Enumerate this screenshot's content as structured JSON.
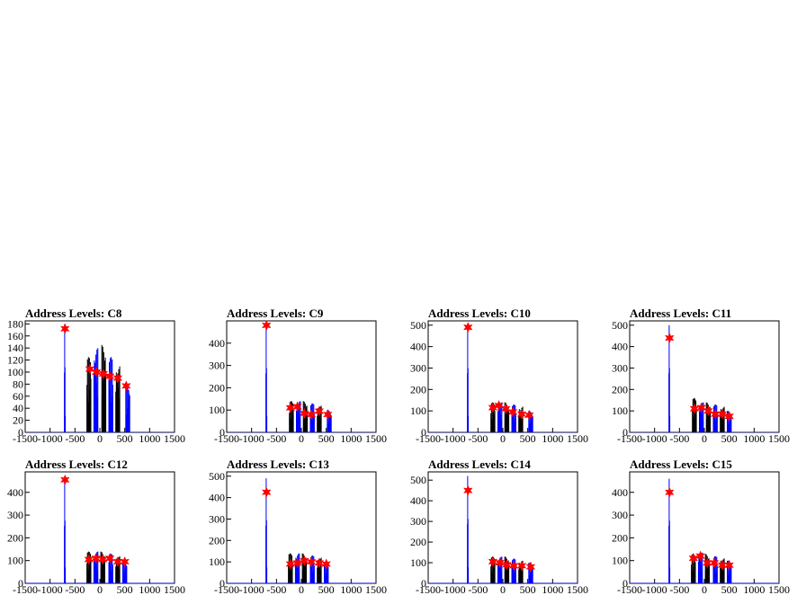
{
  "chart_data": [
    {
      "type": "line",
      "title": "Address Levels: C8",
      "xlim": [
        -1500,
        1500
      ],
      "ylim": [
        0,
        185
      ],
      "xticks": [
        -1500,
        -1000,
        -500,
        0,
        500,
        1000,
        1500
      ],
      "xtick_labels": [
        "-1500",
        "-1000",
        "-500",
        "0",
        "500",
        "1000",
        "1500"
      ],
      "yticks": [
        0,
        20,
        40,
        60,
        80,
        100,
        120,
        140,
        160,
        180
      ],
      "ytick_labels": [
        "0",
        "20",
        "40",
        "60",
        "80",
        "100",
        "120",
        "140",
        "160",
        "180"
      ],
      "peaks": [
        [
          -700,
          180
        ],
        [
          -220,
          125
        ],
        [
          -80,
          140
        ],
        [
          80,
          145
        ],
        [
          220,
          125
        ],
        [
          360,
          110
        ],
        [
          560,
          80
        ]
      ],
      "markers": [
        [
          -700,
          172
        ],
        [
          -200,
          105
        ],
        [
          -70,
          100
        ],
        [
          70,
          97
        ],
        [
          200,
          93
        ],
        [
          360,
          90
        ],
        [
          530,
          77
        ]
      ]
    },
    {
      "type": "line",
      "title": "Address Levels: C9",
      "xlim": [
        -1500,
        1500
      ],
      "ylim": [
        0,
        500
      ],
      "xticks": [
        -1500,
        -1000,
        -500,
        0,
        500,
        1000,
        1500
      ],
      "xtick_labels": [
        "-1500",
        "-1000",
        "-500",
        "0",
        "500",
        "1000",
        "1500"
      ],
      "yticks": [
        0,
        100,
        200,
        300,
        400
      ],
      "ytick_labels": [
        "0",
        "100",
        "200",
        "300",
        "400"
      ],
      "peaks": [
        [
          -700,
          480
        ],
        [
          -200,
          140
        ],
        [
          -60,
          140
        ],
        [
          80,
          140
        ],
        [
          220,
          130
        ],
        [
          360,
          120
        ],
        [
          560,
          100
        ]
      ],
      "markers": [
        [
          -700,
          480
        ],
        [
          -220,
          110
        ],
        [
          -80,
          115
        ],
        [
          60,
          85
        ],
        [
          200,
          80
        ],
        [
          360,
          95
        ],
        [
          530,
          80
        ]
      ]
    },
    {
      "type": "line",
      "title": "Address Levels: C10",
      "xlim": [
        -1500,
        1500
      ],
      "ylim": [
        0,
        520
      ],
      "xticks": [
        -1500,
        -1000,
        -500,
        0,
        500,
        1000,
        1500
      ],
      "xtick_labels": [
        "-1500",
        "-1000",
        "-500",
        "0",
        "500",
        "1000",
        "1500"
      ],
      "yticks": [
        0,
        100,
        200,
        300,
        400,
        500
      ],
      "ytick_labels": [
        "0",
        "100",
        "200",
        "300",
        "400",
        "500"
      ],
      "peaks": [
        [
          -700,
          500
        ],
        [
          -200,
          140
        ],
        [
          -60,
          140
        ],
        [
          80,
          140
        ],
        [
          220,
          130
        ],
        [
          360,
          120
        ],
        [
          560,
          100
        ]
      ],
      "markers": [
        [
          -700,
          490
        ],
        [
          -200,
          115
        ],
        [
          -80,
          125
        ],
        [
          60,
          110
        ],
        [
          200,
          95
        ],
        [
          380,
          85
        ],
        [
          530,
          80
        ]
      ]
    },
    {
      "type": "line",
      "title": "Address Levels: C11",
      "xlim": [
        -1500,
        1500
      ],
      "ylim": [
        0,
        520
      ],
      "xticks": [
        -1500,
        -1000,
        -500,
        0,
        500,
        1000,
        1500
      ],
      "xtick_labels": [
        "-1500",
        "-1000",
        "-500",
        "0",
        "500",
        "1000",
        "1500"
      ],
      "yticks": [
        0,
        100,
        200,
        300,
        400,
        500
      ],
      "ytick_labels": [
        "0",
        "100",
        "200",
        "300",
        "400",
        "500"
      ],
      "peaks": [
        [
          -700,
          500
        ],
        [
          -200,
          160
        ],
        [
          -60,
          140
        ],
        [
          80,
          140
        ],
        [
          220,
          130
        ],
        [
          360,
          120
        ],
        [
          500,
          100
        ]
      ],
      "markers": [
        [
          -700,
          440
        ],
        [
          -200,
          110
        ],
        [
          -60,
          115
        ],
        [
          80,
          100
        ],
        [
          220,
          85
        ],
        [
          360,
          85
        ],
        [
          500,
          75
        ]
      ]
    },
    {
      "type": "line",
      "title": "Address Levels: C12",
      "xlim": [
        -1500,
        1500
      ],
      "ylim": [
        0,
        490
      ],
      "xticks": [
        -1500,
        -1000,
        -500,
        0,
        500,
        1000,
        1500
      ],
      "xtick_labels": [
        "-1500",
        "-1000",
        "-500",
        "0",
        "500",
        "1000",
        "1500"
      ],
      "yticks": [
        0,
        100,
        200,
        300,
        400
      ],
      "ytick_labels": [
        "0",
        "100",
        "200",
        "300",
        "400"
      ],
      "peaks": [
        [
          -700,
          460
        ],
        [
          -220,
          140
        ],
        [
          -80,
          140
        ],
        [
          60,
          140
        ],
        [
          220,
          130
        ],
        [
          360,
          120
        ],
        [
          500,
          100
        ]
      ],
      "markers": [
        [
          -700,
          455
        ],
        [
          -220,
          105
        ],
        [
          -80,
          110
        ],
        [
          60,
          105
        ],
        [
          200,
          110
        ],
        [
          360,
          95
        ],
        [
          500,
          95
        ]
      ]
    },
    {
      "type": "line",
      "title": "Address Levels: C13",
      "xlim": [
        -1500,
        1500
      ],
      "ylim": [
        0,
        520
      ],
      "xticks": [
        -1500,
        -1000,
        -500,
        0,
        500,
        1000,
        1500
      ],
      "xtick_labels": [
        "-1500",
        "-1000",
        "-500",
        "0",
        "500",
        "1000",
        "1500"
      ],
      "yticks": [
        0,
        100,
        200,
        300,
        400,
        500
      ],
      "ytick_labels": [
        "0",
        "100",
        "200",
        "300",
        "400",
        "500"
      ],
      "peaks": [
        [
          -700,
          490
        ],
        [
          -220,
          140
        ],
        [
          -80,
          140
        ],
        [
          60,
          140
        ],
        [
          220,
          130
        ],
        [
          360,
          120
        ],
        [
          500,
          100
        ]
      ],
      "markers": [
        [
          -700,
          425
        ],
        [
          -220,
          90
        ],
        [
          -80,
          95
        ],
        [
          60,
          105
        ],
        [
          200,
          100
        ],
        [
          360,
          95
        ],
        [
          500,
          90
        ]
      ]
    },
    {
      "type": "line",
      "title": "Address Levels: C14",
      "xlim": [
        -1500,
        1500
      ],
      "ylim": [
        0,
        540
      ],
      "xticks": [
        -1500,
        -1000,
        -500,
        0,
        500,
        1000,
        1500
      ],
      "xtick_labels": [
        "-1500",
        "-1000",
        "-500",
        "0",
        "500",
        "1000",
        "1500"
      ],
      "yticks": [
        0,
        100,
        200,
        300,
        400,
        500
      ],
      "ytick_labels": [
        "0",
        "100",
        "200",
        "300",
        "400",
        "500"
      ],
      "peaks": [
        [
          -700,
          520
        ],
        [
          -200,
          130
        ],
        [
          -60,
          130
        ],
        [
          80,
          130
        ],
        [
          220,
          120
        ],
        [
          360,
          110
        ],
        [
          560,
          100
        ]
      ],
      "markers": [
        [
          -700,
          450
        ],
        [
          -200,
          105
        ],
        [
          -60,
          100
        ],
        [
          80,
          90
        ],
        [
          220,
          85
        ],
        [
          380,
          85
        ],
        [
          560,
          80
        ]
      ]
    },
    {
      "type": "line",
      "title": "Address Levels: C15",
      "xlim": [
        -1500,
        1500
      ],
      "ylim": [
        0,
        490
      ],
      "xticks": [
        -1500,
        -1000,
        -500,
        0,
        500,
        1000,
        1500
      ],
      "xtick_labels": [
        "-1500",
        "-1000",
        "-500",
        "0",
        "500",
        "1000",
        "1500"
      ],
      "yticks": [
        0,
        100,
        200,
        300,
        400
      ],
      "ytick_labels": [
        "0",
        "100",
        "200",
        "300",
        "400"
      ],
      "peaks": [
        [
          -700,
          460
        ],
        [
          -220,
          130
        ],
        [
          -80,
          135
        ],
        [
          60,
          130
        ],
        [
          220,
          120
        ],
        [
          360,
          110
        ],
        [
          500,
          100
        ]
      ],
      "markers": [
        [
          -700,
          400
        ],
        [
          -220,
          110
        ],
        [
          -80,
          120
        ],
        [
          60,
          90
        ],
        [
          200,
          90
        ],
        [
          360,
          80
        ],
        [
          500,
          80
        ]
      ]
    }
  ],
  "colors": {
    "line_main": "#0000ff",
    "line_dark": "#000000",
    "marker": "#ff0000",
    "axis": "#000000"
  }
}
